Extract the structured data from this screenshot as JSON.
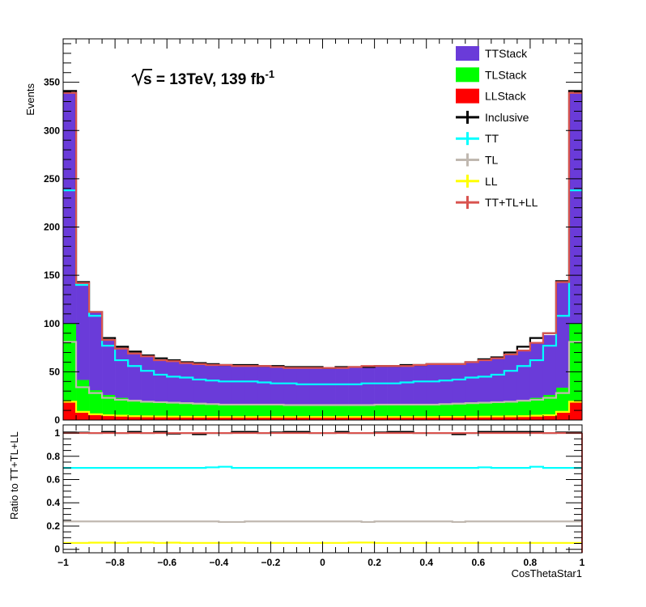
{
  "chart_data": [
    {
      "type": "bar",
      "subtype": "stacked-histogram-with-step-overlays",
      "title": "",
      "annotation": {
        "prefix": "s = 13TeV, 139 fb",
        "superscript": "-1"
      },
      "ylabel": "Events",
      "xlabel": "",
      "xlim": [
        -1,
        1
      ],
      "ylim": [
        0,
        395
      ],
      "bin_edges": [
        -1,
        -0.95,
        -0.9,
        -0.85,
        -0.8,
        -0.75,
        -0.7,
        -0.65,
        -0.6,
        -0.55,
        -0.5,
        -0.45,
        -0.4,
        -0.35,
        -0.3,
        -0.25,
        -0.2,
        -0.15,
        -0.1,
        -0.05,
        0,
        0.05,
        0.1,
        0.15,
        0.2,
        0.25,
        0.3,
        0.35,
        0.4,
        0.45,
        0.5,
        0.55,
        0.6,
        0.65,
        0.7,
        0.75,
        0.8,
        0.85,
        0.9,
        0.95,
        1
      ],
      "y_ticks": [
        {
          "value": 0,
          "label": "0"
        },
        {
          "value": 50,
          "label": "50"
        },
        {
          "value": 100,
          "label": "100"
        },
        {
          "value": 150,
          "label": "150"
        },
        {
          "value": 200,
          "label": "200"
        },
        {
          "value": 250,
          "label": "250"
        },
        {
          "value": 300,
          "label": "300"
        },
        {
          "value": 350,
          "label": "350"
        }
      ],
      "stacked_series": [
        {
          "name": "LLStack",
          "color": "#ff0000",
          "values": [
            19,
            8.5,
            6,
            5,
            4.5,
            4,
            3.8,
            3.6,
            3.5,
            3.4,
            3.3,
            3.3,
            3.2,
            3.2,
            3.2,
            3.2,
            3.2,
            3.2,
            3.2,
            3.2,
            3.2,
            3.2,
            3.2,
            3.2,
            3.2,
            3.2,
            3.2,
            3.2,
            3.2,
            3.3,
            3.3,
            3.4,
            3.5,
            3.6,
            3.8,
            4,
            4.5,
            5,
            8.5,
            19
          ]
        },
        {
          "name": "TLStack",
          "color": "#00ff00",
          "values": [
            81,
            33,
            25,
            21,
            18.5,
            17,
            16,
            15.5,
            15,
            14.5,
            14,
            13.8,
            13.5,
            13.3,
            13,
            12.8,
            12.8,
            12.8,
            12.8,
            12.8,
            12.8,
            12.8,
            12.8,
            12.8,
            12.8,
            12.8,
            13,
            13.3,
            13.5,
            13.8,
            14,
            14.5,
            15,
            15.5,
            16,
            17,
            18.5,
            21,
            25,
            81
          ]
        },
        {
          "name": "TTStack",
          "color": "#6a3bd9",
          "values": [
            239,
            101,
            81,
            57,
            51,
            48,
            46,
            43,
            42,
            41,
            41,
            40,
            40,
            40,
            40,
            40,
            39,
            38,
            38,
            38,
            38,
            38,
            39,
            40,
            40,
            40,
            40,
            40,
            41,
            41,
            41,
            43,
            44,
            45,
            48,
            51,
            57,
            62,
            110,
            239
          ]
        }
      ],
      "line_series": [
        {
          "name": "Inclusive",
          "color": "#000000",
          "values": [
            341,
            143,
            112,
            85,
            76,
            71,
            67,
            64,
            62,
            60,
            59,
            58,
            57,
            57,
            57,
            56,
            56,
            55,
            55,
            55,
            54,
            55,
            55,
            55,
            56,
            56,
            57,
            57,
            58,
            58,
            58,
            60,
            63,
            65,
            70,
            76,
            85,
            90,
            144,
            341
          ]
        },
        {
          "name": "TT",
          "color": "#00ffff",
          "values": [
            238,
            140,
            108,
            77,
            62,
            56,
            51,
            47,
            45,
            44,
            42,
            41,
            40,
            40,
            40,
            39,
            38,
            38,
            37,
            37,
            37,
            37,
            37,
            38,
            38,
            38,
            39,
            40,
            40,
            41,
            42,
            44,
            45,
            47,
            51,
            56,
            62,
            77,
            108,
            238
          ]
        },
        {
          "name": "TL",
          "color": "#c0b8b0",
          "values": [
            81,
            34,
            28,
            23,
            21,
            20,
            19,
            18.5,
            18,
            17.5,
            17,
            16.5,
            16,
            16,
            16,
            16,
            16,
            15.5,
            15.5,
            15.5,
            15.5,
            15.5,
            15.5,
            15.5,
            16,
            16,
            16,
            16,
            16,
            16.5,
            17,
            17.5,
            18,
            18.5,
            19,
            20,
            21,
            23,
            28,
            81
          ]
        },
        {
          "name": "LL",
          "color": "#ffff00",
          "values": [
            19,
            8.5,
            6,
            5,
            4.5,
            4,
            3.8,
            3.6,
            3.5,
            3.4,
            3.3,
            3.3,
            3.2,
            3.2,
            3.2,
            3.2,
            3.2,
            3.2,
            3.2,
            3.2,
            3.2,
            3.2,
            3.2,
            3.2,
            3.2,
            3.2,
            3.2,
            3.2,
            3.2,
            3.3,
            3.3,
            3.4,
            3.5,
            3.6,
            3.8,
            4,
            4.5,
            5,
            8.5,
            19
          ]
        },
        {
          "name": "TT+TL+LL",
          "color": "#d9534f",
          "values": [
            339,
            142,
            112,
            83,
            74,
            69,
            66,
            62,
            61,
            59,
            58,
            57,
            57,
            56,
            56,
            56,
            55,
            54,
            54,
            54,
            54,
            54,
            55,
            56,
            56,
            56,
            56,
            57,
            58,
            58,
            58,
            60,
            62,
            64,
            68,
            72,
            80,
            90,
            143,
            339
          ]
        }
      ],
      "legend": {
        "placement": "top-right",
        "entries": [
          {
            "label": "TTStack",
            "kind": "fill",
            "color": "#6a3bd9"
          },
          {
            "label": "TLStack",
            "kind": "fill",
            "color": "#00ff00"
          },
          {
            "label": "LLStack",
            "kind": "fill",
            "color": "#ff0000"
          },
          {
            "label": "Inclusive",
            "kind": "line",
            "color": "#000000"
          },
          {
            "label": "TT",
            "kind": "line",
            "color": "#00ffff"
          },
          {
            "label": "TL",
            "kind": "line",
            "color": "#c0b8b0"
          },
          {
            "label": "LL",
            "kind": "line",
            "color": "#ffff00"
          },
          {
            "label": "TT+TL+LL",
            "kind": "line",
            "color": "#d9534f"
          }
        ]
      }
    },
    {
      "type": "line",
      "subtype": "ratio-panel",
      "title": "",
      "ylabel": "Ratio to TT+TL+LL",
      "xlabel": "CosThetaStar1",
      "xlim": [
        -1,
        1
      ],
      "ylim": [
        -0.03,
        1.07
      ],
      "x_ticks": [
        {
          "value": -1,
          "label": "−1"
        },
        {
          "value": -0.8,
          "label": "−0.8"
        },
        {
          "value": -0.6,
          "label": "−0.6"
        },
        {
          "value": -0.4,
          "label": "−0.4"
        },
        {
          "value": -0.2,
          "label": "−0.2"
        },
        {
          "value": 0,
          "label": "0"
        },
        {
          "value": 0.2,
          "label": "0.2"
        },
        {
          "value": 0.4,
          "label": "0.4"
        },
        {
          "value": 0.6,
          "label": "0.6"
        },
        {
          "value": 0.8,
          "label": "0.8"
        },
        {
          "value": 1,
          "label": "1"
        }
      ],
      "y_ticks": [
        {
          "value": 0,
          "label": "0"
        },
        {
          "value": 0.2,
          "label": "0.2"
        },
        {
          "value": 0.4,
          "label": "0.4"
        },
        {
          "value": 0.6,
          "label": "0.6"
        },
        {
          "value": 0.8,
          "label": "0.8"
        },
        {
          "value": 1,
          "label": "1"
        }
      ],
      "series": [
        {
          "name": "Inclusive",
          "color": "#000000",
          "values": [
            1.005,
            1.003,
            1.0,
            1.01,
            1.0,
            1.01,
            1.0,
            1.01,
            0.995,
            1.0,
            0.99,
            1.0,
            1.0,
            1.01,
            1.01,
            1.0,
            1.005,
            1.01,
            1.01,
            1.0,
            1.0,
            1.01,
            1.0,
            1.0,
            1.005,
            1.01,
            1.01,
            1.0,
            1.0,
            1.0,
            0.99,
            1.0,
            1.01,
            1.01,
            1.01,
            1.01,
            1.01,
            1.0,
            1.005,
            1.005
          ]
        },
        {
          "name": "TT",
          "color": "#00ffff",
          "values": [
            0.7,
            0.7,
            0.7,
            0.7,
            0.7,
            0.7,
            0.7,
            0.7,
            0.7,
            0.7,
            0.7,
            0.705,
            0.71,
            0.7,
            0.7,
            0.7,
            0.7,
            0.7,
            0.7,
            0.7,
            0.7,
            0.7,
            0.7,
            0.7,
            0.7,
            0.7,
            0.7,
            0.7,
            0.7,
            0.7,
            0.7,
            0.7,
            0.705,
            0.7,
            0.7,
            0.7,
            0.71,
            0.7,
            0.7,
            0.7
          ]
        },
        {
          "name": "TL",
          "color": "#c0b8b0",
          "values": [
            0.24,
            0.24,
            0.24,
            0.24,
            0.24,
            0.24,
            0.24,
            0.24,
            0.24,
            0.24,
            0.24,
            0.24,
            0.235,
            0.235,
            0.24,
            0.24,
            0.24,
            0.24,
            0.24,
            0.24,
            0.24,
            0.24,
            0.24,
            0.235,
            0.24,
            0.24,
            0.24,
            0.24,
            0.24,
            0.24,
            0.235,
            0.24,
            0.24,
            0.24,
            0.24,
            0.24,
            0.24,
            0.24,
            0.24,
            0.24
          ]
        },
        {
          "name": "LL",
          "color": "#ffff00",
          "values": [
            0.055,
            0.055,
            0.057,
            0.057,
            0.055,
            0.058,
            0.058,
            0.055,
            0.057,
            0.055,
            0.055,
            0.055,
            0.055,
            0.056,
            0.055,
            0.055,
            0.055,
            0.055,
            0.055,
            0.055,
            0.055,
            0.055,
            0.058,
            0.058,
            0.055,
            0.055,
            0.055,
            0.055,
            0.055,
            0.055,
            0.055,
            0.055,
            0.055,
            0.055,
            0.055,
            0.055,
            0.055,
            0.055,
            0.055,
            0.055
          ]
        },
        {
          "name": "TT+TL+LL",
          "color": "#d9534f",
          "values": [
            1,
            1,
            1,
            1,
            1,
            1,
            1,
            1,
            1,
            1,
            1,
            1,
            1,
            1,
            1,
            1,
            1,
            1,
            1,
            1,
            1,
            1,
            1,
            1,
            1,
            1,
            1,
            1,
            1,
            1,
            1,
            1,
            1,
            1,
            1,
            1,
            1,
            1,
            1,
            1
          ]
        }
      ]
    }
  ]
}
